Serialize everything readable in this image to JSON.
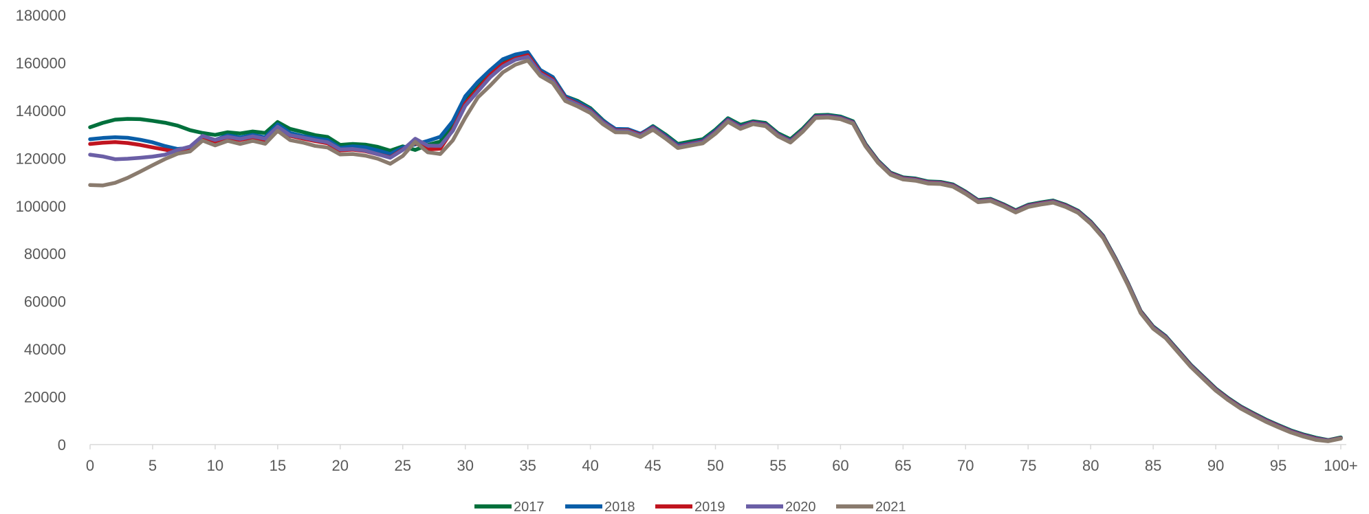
{
  "chart_data": {
    "type": "line",
    "title": "",
    "xlabel": "",
    "ylabel": "",
    "ylim": [
      0,
      180000
    ],
    "yticks": [
      0,
      20000,
      40000,
      60000,
      80000,
      100000,
      120000,
      140000,
      160000,
      180000
    ],
    "xticks": [
      "0",
      "5",
      "10",
      "15",
      "20",
      "25",
      "30",
      "35",
      "40",
      "45",
      "50",
      "55",
      "60",
      "65",
      "70",
      "75",
      "80",
      "85",
      "90",
      "95",
      "100+"
    ],
    "grid": false,
    "legend_position": "bottom",
    "x": [
      0,
      1,
      2,
      3,
      4,
      5,
      6,
      7,
      8,
      9,
      10,
      11,
      12,
      13,
      14,
      15,
      16,
      17,
      18,
      19,
      20,
      21,
      22,
      23,
      24,
      25,
      26,
      27,
      28,
      29,
      30,
      31,
      32,
      33,
      34,
      35,
      36,
      37,
      38,
      39,
      40,
      41,
      42,
      43,
      44,
      45,
      46,
      47,
      48,
      49,
      50,
      51,
      52,
      53,
      54,
      55,
      56,
      57,
      58,
      59,
      60,
      61,
      62,
      63,
      64,
      65,
      66,
      67,
      68,
      69,
      70,
      71,
      72,
      73,
      74,
      75,
      76,
      77,
      78,
      79,
      80,
      81,
      82,
      83,
      84,
      85,
      86,
      87,
      88,
      89,
      90,
      91,
      92,
      93,
      94,
      95,
      96,
      97,
      98,
      99,
      100
    ],
    "series": [
      {
        "name": "2017",
        "color": "#00703c",
        "values": [
          133000,
          134800,
          136200,
          136500,
          136400,
          135700,
          134900,
          133700,
          131800,
          130600,
          129800,
          130900,
          130400,
          131200,
          130600,
          135200,
          132300,
          131000,
          129700,
          128900,
          125600,
          126000,
          125700,
          124800,
          123200,
          125000,
          123500,
          125600,
          127000,
          134000,
          145000,
          151000,
          156000,
          161000,
          163000,
          164000,
          157000,
          154000,
          146000,
          144000,
          141000,
          136000,
          132000,
          132000,
          130000,
          133500,
          130000,
          126000,
          127000,
          128000,
          132000,
          136800,
          134000,
          135500,
          134800,
          130500,
          128000,
          132500,
          138000,
          138200,
          137500,
          135500,
          126000,
          119000,
          114000,
          112000,
          111500,
          110300,
          110100,
          109000,
          106000,
          102500,
          103000,
          100800,
          98200,
          100500,
          101500,
          102300,
          100500,
          98000,
          93500,
          87500,
          78000,
          67500,
          56000,
          49500,
          45500,
          39500,
          33500,
          28500,
          23500,
          19500,
          16000,
          13200,
          10500,
          8200,
          6000,
          4300,
          2900,
          1900,
          3000
        ]
      },
      {
        "name": "2018",
        "color": "#0a5ea8",
        "values": [
          128000,
          128500,
          128800,
          128600,
          127800,
          126700,
          125100,
          123900,
          124300,
          129000,
          127700,
          129600,
          128700,
          129800,
          128800,
          134200,
          130600,
          129300,
          128400,
          127600,
          124300,
          125000,
          124600,
          123300,
          121800,
          124500,
          125800,
          127300,
          129000,
          135500,
          146000,
          152000,
          157000,
          161500,
          163500,
          164500,
          157000,
          154000,
          146000,
          143500,
          140600,
          135800,
          132300,
          132200,
          130300,
          133200,
          129500,
          125500,
          126300,
          127400,
          131500,
          136400,
          133400,
          135200,
          134400,
          130100,
          127500,
          132000,
          137700,
          137900,
          137200,
          135200,
          125700,
          118800,
          113800,
          111800,
          111300,
          110100,
          109900,
          108800,
          105800,
          102300,
          102800,
          100600,
          98000,
          100300,
          101300,
          102100,
          100300,
          97800,
          93300,
          87300,
          77800,
          67300,
          55800,
          49300,
          45300,
          39300,
          33300,
          28300,
          23300,
          19300,
          15800,
          13000,
          10300,
          8000,
          5800,
          4100,
          2700,
          1800,
          2800
        ]
      },
      {
        "name": "2019",
        "color": "#c0141f",
        "values": [
          126000,
          126500,
          126800,
          126400,
          125600,
          124600,
          123600,
          122700,
          123900,
          128600,
          127000,
          128500,
          127700,
          128700,
          127700,
          132900,
          129400,
          128300,
          127200,
          126300,
          123300,
          123600,
          123000,
          121700,
          120400,
          123700,
          126400,
          123700,
          124000,
          132000,
          143000,
          149000,
          155000,
          159500,
          161800,
          163200,
          156000,
          153000,
          145200,
          142800,
          140000,
          135200,
          131700,
          131700,
          129800,
          132800,
          129000,
          125000,
          126000,
          127000,
          131000,
          136000,
          133000,
          134900,
          134100,
          129800,
          127200,
          131700,
          137400,
          137600,
          136900,
          135000,
          125500,
          118600,
          113600,
          111600,
          111100,
          109900,
          109700,
          108600,
          105600,
          102100,
          102600,
          100400,
          97800,
          100100,
          101100,
          101900,
          100100,
          97600,
          93100,
          87100,
          77600,
          67100,
          55600,
          49100,
          45100,
          39100,
          33100,
          28100,
          23100,
          19100,
          15600,
          12800,
          10100,
          7800,
          5600,
          3900,
          2500,
          1700,
          2700
        ]
      },
      {
        "name": "2020",
        "color": "#6b5fa6",
        "values": [
          121500,
          120800,
          119600,
          119800,
          120200,
          120700,
          121500,
          123500,
          124900,
          129400,
          127700,
          129000,
          128100,
          129200,
          128200,
          133200,
          129700,
          128700,
          127600,
          126700,
          123700,
          123900,
          123200,
          121700,
          120200,
          123500,
          128200,
          125300,
          125200,
          131500,
          142000,
          148000,
          154000,
          158500,
          161300,
          162500,
          155500,
          152500,
          144800,
          142500,
          139700,
          135000,
          131500,
          131400,
          129500,
          132600,
          128800,
          124800,
          125800,
          126800,
          130800,
          135800,
          132800,
          134700,
          133900,
          129600,
          127000,
          131500,
          137200,
          137400,
          136700,
          134800,
          125300,
          118400,
          113400,
          111400,
          110900,
          109700,
          109500,
          108400,
          105400,
          101900,
          102400,
          100200,
          97600,
          99900,
          100900,
          101700,
          99900,
          97400,
          92900,
          86900,
          77400,
          66900,
          55400,
          48900,
          44900,
          38900,
          32900,
          27900,
          22900,
          18900,
          15400,
          12600,
          9900,
          7600,
          5400,
          3700,
          2300,
          1600,
          2600
        ]
      },
      {
        "name": "2021",
        "color": "#8a7b6e",
        "values": [
          108800,
          108600,
          109700,
          111800,
          114400,
          117100,
          119700,
          121900,
          122900,
          127400,
          125400,
          127300,
          126000,
          127300,
          126100,
          131500,
          127600,
          126600,
          125200,
          124500,
          121600,
          121800,
          121100,
          119800,
          117700,
          121000,
          126900,
          122500,
          121800,
          127500,
          137000,
          145500,
          150500,
          156000,
          159200,
          161000,
          154500,
          151500,
          144000,
          141700,
          139000,
          134300,
          130900,
          130800,
          128900,
          132000,
          128300,
          124300,
          125300,
          126300,
          130300,
          135300,
          132300,
          134300,
          133500,
          129200,
          126600,
          131200,
          136900,
          137100,
          136400,
          134500,
          125000,
          118100,
          113100,
          111100,
          110600,
          109400,
          109200,
          108100,
          105100,
          101600,
          102100,
          99900,
          97300,
          99600,
          100600,
          101400,
          99600,
          97100,
          92600,
          86600,
          77100,
          66600,
          55100,
          48600,
          44600,
          38600,
          32600,
          27600,
          22600,
          18600,
          15100,
          12300,
          9600,
          7300,
          5100,
          3400,
          2000,
          1400,
          2500
        ]
      }
    ]
  }
}
